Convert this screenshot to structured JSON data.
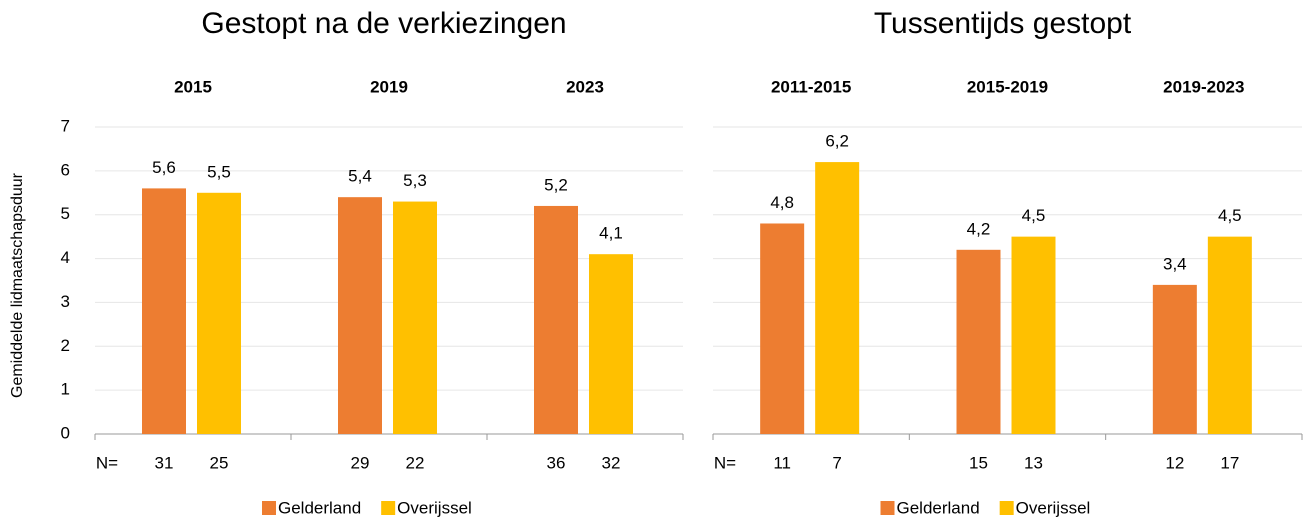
{
  "chart_data": [
    {
      "type": "bar",
      "title": "Gestopt na de verkiezingen",
      "y_label": "Gemiddelde lidmaatschapsduur",
      "categories": [
        "2015",
        "2019",
        "2023"
      ],
      "series": [
        {
          "name": "Gelderland",
          "color": "#ED7D31",
          "values": [
            5.6,
            5.4,
            5.2
          ],
          "value_labels": [
            "5,6",
            "5,4",
            "5,2"
          ],
          "n": [
            31,
            29,
            36
          ]
        },
        {
          "name": "Overijssel",
          "color": "#FFC000",
          "values": [
            5.5,
            5.3,
            4.1
          ],
          "value_labels": [
            "5,5",
            "5,3",
            "4,1"
          ],
          "n": [
            25,
            22,
            32
          ]
        }
      ],
      "n_label": "N=",
      "ylim": [
        0,
        7
      ],
      "yticks": [
        0,
        1,
        2,
        3,
        4,
        5,
        6,
        7
      ],
      "show_ytick_labels": true,
      "grid": true
    },
    {
      "type": "bar",
      "title": "Tussentijds gestopt",
      "categories": [
        "2011-2015",
        "2015-2019",
        "2019-2023"
      ],
      "series": [
        {
          "name": "Gelderland",
          "color": "#ED7D31",
          "values": [
            4.8,
            4.2,
            3.4
          ],
          "value_labels": [
            "4,8",
            "4,2",
            "3,4"
          ],
          "n": [
            11,
            15,
            12
          ]
        },
        {
          "name": "Overijssel",
          "color": "#FFC000",
          "values": [
            6.2,
            4.5,
            4.5
          ],
          "value_labels": [
            "6,2",
            "4,5",
            "4,5"
          ],
          "n": [
            7,
            13,
            17
          ]
        }
      ],
      "n_label": "N=",
      "ylim": [
        0,
        7
      ],
      "yticks": [
        0,
        1,
        2,
        3,
        4,
        5,
        6,
        7
      ],
      "show_ytick_labels": false,
      "grid": true
    }
  ]
}
